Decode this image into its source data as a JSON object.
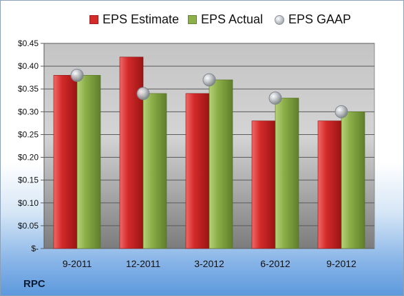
{
  "company_label": "RPC",
  "chart_data": {
    "type": "bar",
    "categories": [
      "9-2011",
      "12-2011",
      "3-2012",
      "6-2012",
      "9-2012"
    ],
    "series": [
      {
        "name": "EPS Estimate",
        "kind": "bar",
        "color": "#d42a2a",
        "values": [
          0.38,
          0.42,
          0.34,
          0.28,
          0.28
        ]
      },
      {
        "name": "EPS Actual",
        "kind": "bar",
        "color": "#8db04a",
        "values": [
          0.38,
          0.34,
          0.37,
          0.33,
          0.3
        ]
      },
      {
        "name": "EPS GAAP",
        "kind": "scatter",
        "color": "#b9bec4",
        "values": [
          0.38,
          0.34,
          0.37,
          0.33,
          0.3
        ]
      }
    ],
    "ylim": [
      0,
      0.45
    ],
    "yticks": [
      0,
      0.05,
      0.1,
      0.15,
      0.2,
      0.25,
      0.3,
      0.35,
      0.4,
      0.45
    ],
    "ytick_labels": [
      "$-",
      "$0.05",
      "$0.10",
      "$0.15",
      "$0.20",
      "$0.25",
      "$0.30",
      "$0.35",
      "$0.40",
      "$0.45"
    ],
    "grid": true,
    "legend_position": "top"
  }
}
